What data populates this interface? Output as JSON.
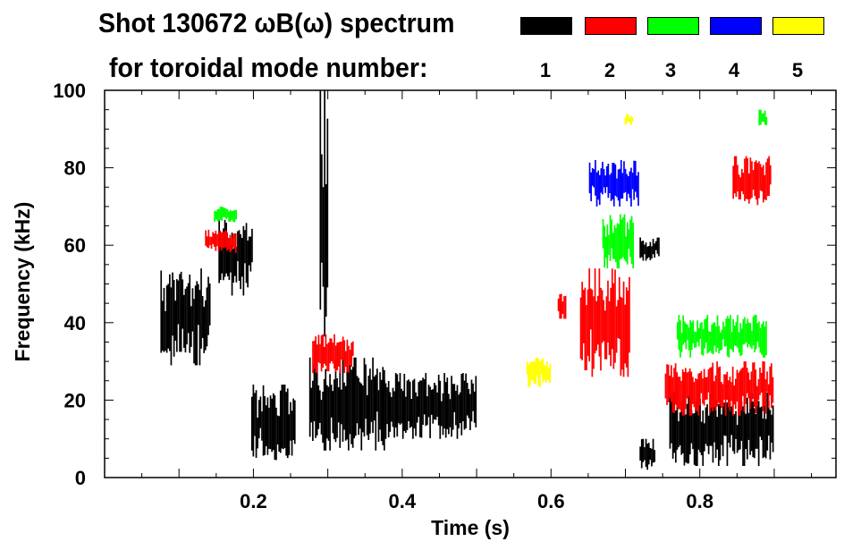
{
  "chart_data": {
    "type": "heatmap",
    "title_line1": "Shot 130672 ωB(ω) spectrum",
    "title_line2": "for toroidal mode number:",
    "xlabel": "Time (s)",
    "ylabel": "Frequency (kHz)",
    "xlim": [
      0.0,
      0.983
    ],
    "ylim": [
      0,
      100
    ],
    "xticks": [
      0.2,
      0.4,
      0.6,
      0.8
    ],
    "xtick_labels": [
      "0.2",
      "0.4",
      "0.6",
      "0.8"
    ],
    "yticks": [
      0,
      20,
      40,
      60,
      80,
      100
    ],
    "ytick_labels": [
      "0",
      "20",
      "40",
      "60",
      "80",
      "100"
    ],
    "legend": {
      "placement": "top",
      "entries": [
        {
          "label": "1",
          "color": "#000000"
        },
        {
          "label": "2",
          "color": "#ff0000"
        },
        {
          "label": "3",
          "color": "#00ff00"
        },
        {
          "label": "4",
          "color": "#0000ff"
        },
        {
          "label": "5",
          "color": "#ffff00"
        }
      ]
    },
    "regions": [
      {
        "mode": 1,
        "t": [
          0.076,
          0.142
        ],
        "f": [
          29,
          54
        ]
      },
      {
        "mode": 1,
        "t": [
          0.154,
          0.2
        ],
        "f": [
          47,
          67
        ]
      },
      {
        "mode": 1,
        "t": [
          0.198,
          0.256
        ],
        "f": [
          4,
          24
        ]
      },
      {
        "mode": 1,
        "t": [
          0.276,
          0.376
        ],
        "f": [
          7,
          31
        ]
      },
      {
        "mode": 1,
        "t": [
          0.29,
          0.3
        ],
        "f": [
          30,
          100
        ]
      },
      {
        "mode": 1,
        "t": [
          0.376,
          0.5
        ],
        "f": [
          10,
          27
        ]
      },
      {
        "mode": 1,
        "t": [
          0.72,
          0.74
        ],
        "f": [
          2,
          10
        ]
      },
      {
        "mode": 1,
        "t": [
          0.72,
          0.745
        ],
        "f": [
          56,
          62
        ]
      },
      {
        "mode": 1,
        "t": [
          0.76,
          0.9
        ],
        "f": [
          3,
          22
        ]
      },
      {
        "mode": 2,
        "t": [
          0.136,
          0.178
        ],
        "f": [
          58,
          64
        ]
      },
      {
        "mode": 2,
        "t": [
          0.28,
          0.334
        ],
        "f": [
          27,
          37
        ]
      },
      {
        "mode": 2,
        "t": [
          0.61,
          0.62
        ],
        "f": [
          41,
          48
        ]
      },
      {
        "mode": 2,
        "t": [
          0.64,
          0.706
        ],
        "f": [
          26,
          54
        ]
      },
      {
        "mode": 2,
        "t": [
          0.754,
          0.9
        ],
        "f": [
          16,
          30
        ]
      },
      {
        "mode": 2,
        "t": [
          0.845,
          0.895
        ],
        "f": [
          70,
          83
        ]
      },
      {
        "mode": 3,
        "t": [
          0.148,
          0.178
        ],
        "f": [
          66,
          70
        ]
      },
      {
        "mode": 3,
        "t": [
          0.67,
          0.712
        ],
        "f": [
          54,
          68
        ]
      },
      {
        "mode": 3,
        "t": [
          0.77,
          0.89
        ],
        "f": [
          31,
          42
        ]
      },
      {
        "mode": 3,
        "t": [
          0.88,
          0.89
        ],
        "f": [
          90,
          95
        ]
      },
      {
        "mode": 4,
        "t": [
          0.652,
          0.718
        ],
        "f": [
          70,
          82
        ]
      },
      {
        "mode": 5,
        "t": [
          0.568,
          0.6
        ],
        "f": [
          23,
          32
        ]
      },
      {
        "mode": 5,
        "t": [
          0.7,
          0.71
        ],
        "f": [
          91,
          94
        ]
      }
    ]
  }
}
